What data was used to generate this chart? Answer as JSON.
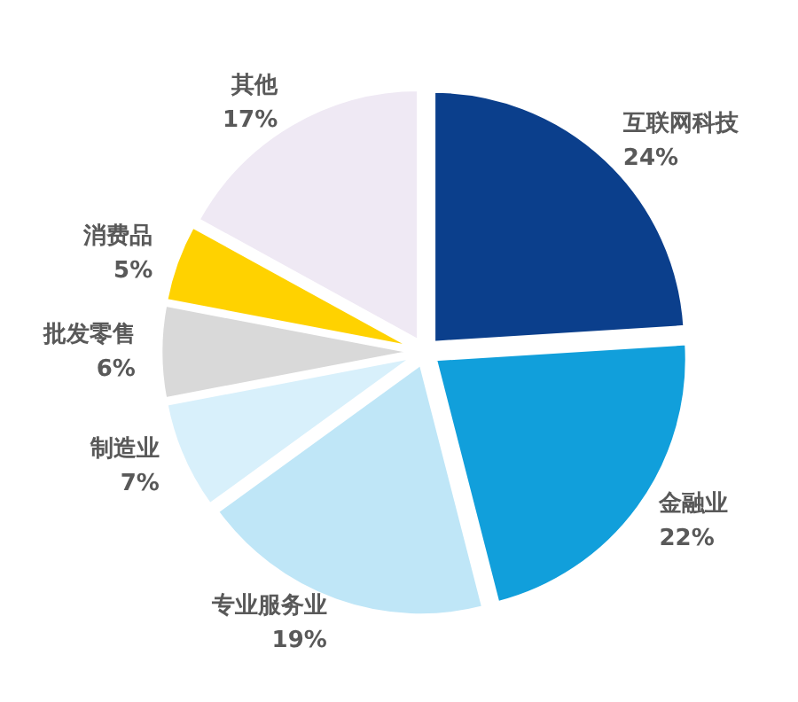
{
  "chart_data": {
    "type": "pie",
    "categories": [
      "互联网科技",
      "金融业",
      "专业服务业",
      "制造业",
      "批发零售",
      "消费品",
      "其他"
    ],
    "values": [
      24,
      22,
      19,
      7,
      6,
      5,
      17
    ],
    "colors": [
      "#0b3f8c",
      "#119fdb",
      "#bfe6f7",
      "#d8f0fb",
      "#d9d9d9",
      "#ffd200",
      "#efe9f4"
    ],
    "value_labels": [
      "24%",
      "22%",
      "19%",
      "7%",
      "6%",
      "5%",
      "17%"
    ],
    "data_labels": false
  }
}
